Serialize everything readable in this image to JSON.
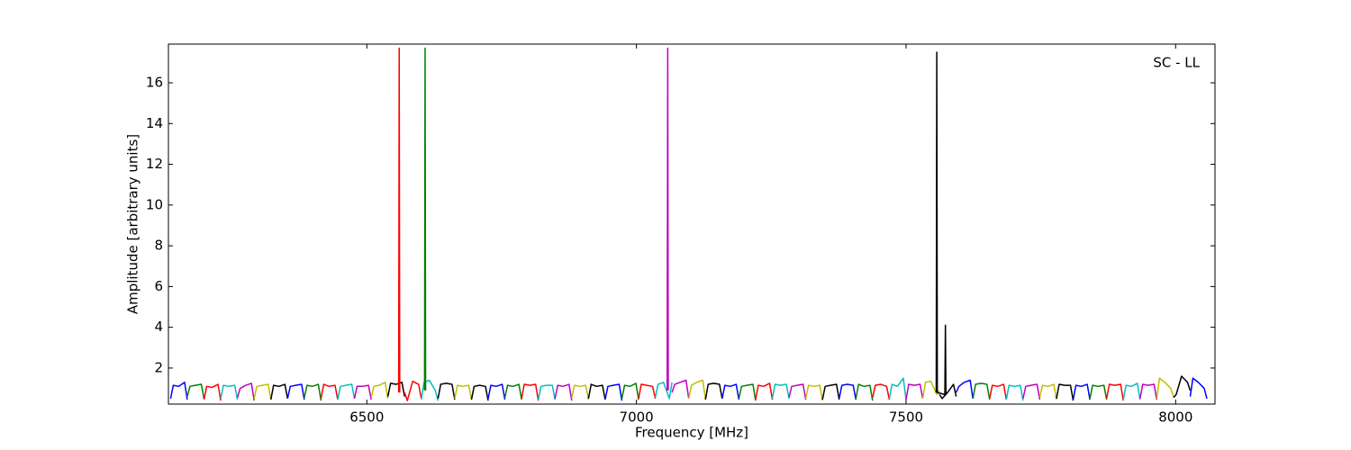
{
  "chart_data": {
    "type": "line",
    "annotation": "SC - LL",
    "xlabel": "Frequency [MHz]",
    "ylabel": "Amplitude [arbitrary units]",
    "xlim": [
      6132,
      8073
    ],
    "ylim": [
      0.23,
      17.9
    ],
    "xticks": [
      6500,
      7000,
      7500,
      8000
    ],
    "yticks": [
      2,
      4,
      6,
      8,
      10,
      12,
      14,
      16
    ],
    "series": [
      {
        "color": "#0000ff",
        "x": [
          6136,
          6141,
          6151,
          6162,
          6167
        ],
        "values": [
          0.5,
          1.15,
          1.1,
          1.3,
          0.45
        ]
      },
      {
        "color": "#008000",
        "x": [
          6167,
          6172,
          6182,
          6193,
          6198
        ],
        "values": [
          0.6,
          1.1,
          1.15,
          1.2,
          0.5
        ]
      },
      {
        "color": "#ff0000",
        "x": [
          6198,
          6203,
          6213,
          6224,
          6229
        ],
        "values": [
          0.45,
          1.1,
          1.05,
          1.2,
          0.4
        ]
      },
      {
        "color": "#00bfbf",
        "x": [
          6229,
          6234,
          6244,
          6255,
          6260
        ],
        "values": [
          0.5,
          1.15,
          1.1,
          1.15,
          0.45
        ]
      },
      {
        "color": "#bf00bf",
        "x": [
          6260,
          6265,
          6275,
          6286,
          6291
        ],
        "values": [
          0.55,
          1.0,
          1.15,
          1.25,
          0.4
        ]
      },
      {
        "color": "#bfbf00",
        "x": [
          6291,
          6296,
          6306,
          6317,
          6322
        ],
        "values": [
          0.5,
          1.1,
          1.15,
          1.2,
          0.45
        ]
      },
      {
        "color": "#000000",
        "x": [
          6322,
          6327,
          6337,
          6348,
          6353
        ],
        "values": [
          0.45,
          1.15,
          1.1,
          1.2,
          0.5
        ]
      },
      {
        "color": "#0000ff",
        "x": [
          6353,
          6358,
          6368,
          6379,
          6384
        ],
        "values": [
          0.5,
          1.1,
          1.15,
          1.2,
          0.45
        ]
      },
      {
        "color": "#008000",
        "x": [
          6384,
          6389,
          6399,
          6410,
          6415
        ],
        "values": [
          0.55,
          1.15,
          1.1,
          1.2,
          0.4
        ]
      },
      {
        "color": "#ff0000",
        "x": [
          6415,
          6420,
          6430,
          6441,
          6446
        ],
        "values": [
          0.5,
          1.2,
          1.1,
          1.15,
          0.45
        ]
      },
      {
        "color": "#00bfbf",
        "x": [
          6446,
          6451,
          6461,
          6472,
          6477
        ],
        "values": [
          0.45,
          1.1,
          1.15,
          1.2,
          0.5
        ]
      },
      {
        "color": "#bf00bf",
        "x": [
          6477,
          6482,
          6492,
          6503,
          6508
        ],
        "values": [
          0.5,
          1.1,
          1.1,
          1.15,
          0.45
        ]
      },
      {
        "color": "#bfbf00",
        "x": [
          6508,
          6513,
          6523,
          6534,
          6539
        ],
        "values": [
          0.55,
          1.1,
          1.15,
          1.3,
          0.5
        ]
      },
      {
        "color": "#000000",
        "x": [
          6539,
          6544,
          6554,
          6565,
          6570
        ],
        "values": [
          0.6,
          1.25,
          1.2,
          1.3,
          0.6
        ]
      },
      {
        "color": "#ff0000",
        "x": [
          6570,
          6575,
          6585,
          6596,
          6601
        ],
        "values": [
          0.8,
          0.4,
          1.35,
          1.2,
          0.5
        ]
      },
      {
        "color": "#00bfbf",
        "x": [
          6601,
          6606,
          6616,
          6627,
          6632
        ],
        "values": [
          0.45,
          1.3,
          1.4,
          0.9,
          0.4
        ]
      },
      {
        "color": "#000000",
        "x": [
          6632,
          6637,
          6647,
          6658,
          6663
        ],
        "values": [
          0.5,
          1.2,
          1.25,
          1.2,
          0.45
        ]
      },
      {
        "color": "#bfbf00",
        "x": [
          6663,
          6668,
          6678,
          6689,
          6694
        ],
        "values": [
          0.5,
          1.15,
          1.1,
          1.15,
          0.45
        ]
      },
      {
        "color": "#000000",
        "x": [
          6694,
          6699,
          6709,
          6720,
          6725
        ],
        "values": [
          0.45,
          1.1,
          1.15,
          1.1,
          0.4
        ]
      },
      {
        "color": "#0000ff",
        "x": [
          6725,
          6730,
          6740,
          6751,
          6756
        ],
        "values": [
          0.5,
          1.15,
          1.1,
          1.2,
          0.45
        ]
      },
      {
        "color": "#008000",
        "x": [
          6756,
          6761,
          6771,
          6782,
          6787
        ],
        "values": [
          0.55,
          1.15,
          1.1,
          1.2,
          0.45
        ]
      },
      {
        "color": "#ff0000",
        "x": [
          6787,
          6792,
          6802,
          6813,
          6818
        ],
        "values": [
          0.5,
          1.2,
          1.15,
          1.2,
          0.4
        ]
      },
      {
        "color": "#00bfbf",
        "x": [
          6818,
          6823,
          6833,
          6844,
          6849
        ],
        "values": [
          0.45,
          1.1,
          1.15,
          1.15,
          0.45
        ]
      },
      {
        "color": "#bf00bf",
        "x": [
          6849,
          6854,
          6864,
          6875,
          6880
        ],
        "values": [
          0.5,
          1.15,
          1.1,
          1.2,
          0.4
        ]
      },
      {
        "color": "#bfbf00",
        "x": [
          6880,
          6885,
          6895,
          6906,
          6911
        ],
        "values": [
          0.55,
          1.15,
          1.1,
          1.15,
          0.45
        ]
      },
      {
        "color": "#000000",
        "x": [
          6911,
          6916,
          6926,
          6937,
          6942
        ],
        "values": [
          0.5,
          1.2,
          1.1,
          1.15,
          0.45
        ]
      },
      {
        "color": "#0000ff",
        "x": [
          6942,
          6947,
          6957,
          6968,
          6973
        ],
        "values": [
          0.45,
          1.1,
          1.15,
          1.2,
          0.4
        ]
      },
      {
        "color": "#008000",
        "x": [
          6973,
          6978,
          6988,
          6999,
          7004
        ],
        "values": [
          0.5,
          1.15,
          1.1,
          1.25,
          0.45
        ]
      },
      {
        "color": "#ff0000",
        "x": [
          7004,
          7009,
          7019,
          7030,
          7035
        ],
        "values": [
          0.5,
          1.2,
          1.15,
          1.1,
          0.5
        ]
      },
      {
        "color": "#00bfbf",
        "x": [
          7035,
          7040,
          7050,
          7061,
          7066
        ],
        "values": [
          0.55,
          1.2,
          1.3,
          0.5,
          1.3
        ]
      },
      {
        "color": "#bf00bf",
        "x": [
          7066,
          7071,
          7081,
          7092,
          7097
        ],
        "values": [
          0.8,
          1.2,
          1.3,
          1.4,
          0.5
        ]
      },
      {
        "color": "#bfbf00",
        "x": [
          7097,
          7102,
          7112,
          7123,
          7128
        ],
        "values": [
          0.5,
          1.15,
          1.3,
          1.4,
          0.45
        ]
      },
      {
        "color": "#000000",
        "x": [
          7128,
          7133,
          7143,
          7154,
          7159
        ],
        "values": [
          0.45,
          1.2,
          1.25,
          1.2,
          0.5
        ]
      },
      {
        "color": "#0000ff",
        "x": [
          7159,
          7164,
          7174,
          7185,
          7190
        ],
        "values": [
          0.5,
          1.15,
          1.1,
          1.2,
          0.45
        ]
      },
      {
        "color": "#008000",
        "x": [
          7190,
          7195,
          7205,
          7216,
          7221
        ],
        "values": [
          0.5,
          1.1,
          1.15,
          1.2,
          0.4
        ]
      },
      {
        "color": "#ff0000",
        "x": [
          7221,
          7226,
          7236,
          7247,
          7252
        ],
        "values": [
          0.45,
          1.15,
          1.1,
          1.25,
          0.45
        ]
      },
      {
        "color": "#00bfbf",
        "x": [
          7252,
          7257,
          7267,
          7278,
          7283
        ],
        "values": [
          0.5,
          1.2,
          1.15,
          1.2,
          0.5
        ]
      },
      {
        "color": "#bf00bf",
        "x": [
          7283,
          7288,
          7298,
          7309,
          7314
        ],
        "values": [
          0.55,
          1.1,
          1.15,
          1.2,
          0.45
        ]
      },
      {
        "color": "#bfbf00",
        "x": [
          7314,
          7319,
          7329,
          7340,
          7345
        ],
        "values": [
          0.5,
          1.15,
          1.1,
          1.15,
          0.4
        ]
      },
      {
        "color": "#000000",
        "x": [
          7345,
          7350,
          7360,
          7371,
          7376
        ],
        "values": [
          0.45,
          1.1,
          1.15,
          1.2,
          0.45
        ]
      },
      {
        "color": "#0000ff",
        "x": [
          7376,
          7381,
          7391,
          7402,
          7407
        ],
        "values": [
          0.5,
          1.15,
          1.2,
          1.15,
          0.45
        ]
      },
      {
        "color": "#008000",
        "x": [
          7407,
          7412,
          7422,
          7433,
          7438
        ],
        "values": [
          0.5,
          1.2,
          1.1,
          1.15,
          0.4
        ]
      },
      {
        "color": "#ff0000",
        "x": [
          7438,
          7443,
          7453,
          7464,
          7469
        ],
        "values": [
          0.55,
          1.15,
          1.2,
          1.1,
          0.45
        ]
      },
      {
        "color": "#00bfbf",
        "x": [
          7469,
          7474,
          7484,
          7495,
          7500
        ],
        "values": [
          0.5,
          1.2,
          1.1,
          1.5,
          0.45
        ]
      },
      {
        "color": "#bf00bf",
        "x": [
          7500,
          7505,
          7515,
          7526,
          7531
        ],
        "values": [
          0.45,
          1.2,
          1.15,
          1.2,
          0.5
        ]
      },
      {
        "color": "#bfbf00",
        "x": [
          7531,
          7536,
          7546,
          7557,
          7562
        ],
        "values": [
          0.5,
          1.3,
          1.35,
          0.7,
          0.9
        ]
      },
      {
        "color": "#000000",
        "x": [
          7562,
          7567,
          7577,
          7588,
          7593
        ],
        "values": [
          0.7,
          0.5,
          0.8,
          1.2,
          0.6
        ]
      },
      {
        "color": "#0000ff",
        "x": [
          7593,
          7598,
          7608,
          7619,
          7624
        ],
        "values": [
          0.8,
          1.1,
          1.3,
          1.4,
          0.5
        ]
      },
      {
        "color": "#008000",
        "x": [
          7624,
          7629,
          7639,
          7650,
          7655
        ],
        "values": [
          0.5,
          1.2,
          1.25,
          1.2,
          0.45
        ]
      },
      {
        "color": "#ff0000",
        "x": [
          7655,
          7660,
          7670,
          7681,
          7686
        ],
        "values": [
          0.5,
          1.15,
          1.1,
          1.2,
          0.45
        ]
      },
      {
        "color": "#00bfbf",
        "x": [
          7686,
          7691,
          7701,
          7712,
          7717
        ],
        "values": [
          0.45,
          1.15,
          1.1,
          1.15,
          0.4
        ]
      },
      {
        "color": "#bf00bf",
        "x": [
          7717,
          7722,
          7732,
          7743,
          7748
        ],
        "values": [
          0.5,
          1.1,
          1.15,
          1.2,
          0.45
        ]
      },
      {
        "color": "#bfbf00",
        "x": [
          7748,
          7753,
          7763,
          7774,
          7779
        ],
        "values": [
          0.55,
          1.15,
          1.1,
          1.2,
          0.45
        ]
      },
      {
        "color": "#000000",
        "x": [
          7779,
          7784,
          7794,
          7805,
          7810
        ],
        "values": [
          0.5,
          1.2,
          1.15,
          1.15,
          0.4
        ]
      },
      {
        "color": "#0000ff",
        "x": [
          7810,
          7815,
          7825,
          7836,
          7841
        ],
        "values": [
          0.45,
          1.15,
          1.1,
          1.2,
          0.45
        ]
      },
      {
        "color": "#008000",
        "x": [
          7841,
          7846,
          7856,
          7867,
          7872
        ],
        "values": [
          0.5,
          1.15,
          1.1,
          1.15,
          0.45
        ]
      },
      {
        "color": "#ff0000",
        "x": [
          7872,
          7877,
          7887,
          7898,
          7903
        ],
        "values": [
          0.5,
          1.2,
          1.15,
          1.2,
          0.4
        ]
      },
      {
        "color": "#00bfbf",
        "x": [
          7903,
          7908,
          7918,
          7929,
          7934
        ],
        "values": [
          0.45,
          1.15,
          1.1,
          1.25,
          0.45
        ]
      },
      {
        "color": "#bf00bf",
        "x": [
          7934,
          7939,
          7949,
          7960,
          7965
        ],
        "values": [
          0.5,
          1.2,
          1.15,
          1.2,
          0.45
        ]
      },
      {
        "color": "#bfbf00",
        "x": [
          7965,
          7970,
          7980,
          7991,
          7996
        ],
        "values": [
          0.5,
          1.5,
          1.3,
          1.0,
          0.6
        ]
      },
      {
        "color": "#000000",
        "x": [
          7996,
          8001,
          8011,
          8022,
          8027
        ],
        "values": [
          0.55,
          0.7,
          1.6,
          1.3,
          0.9
        ]
      },
      {
        "color": "#0000ff",
        "x": [
          8027,
          8032,
          8042,
          8053,
          8058
        ],
        "values": [
          0.6,
          1.5,
          1.3,
          1.0,
          0.5
        ]
      },
      {
        "color": "#ff0000",
        "x": [
          6559,
          6560,
          6561
        ],
        "values": [
          0.8,
          17.7,
          0.8
        ]
      },
      {
        "color": "#008000",
        "x": [
          6607,
          6608,
          6609
        ],
        "values": [
          0.9,
          17.7,
          0.9
        ]
      },
      {
        "color": "#bf00bf",
        "x": [
          7057,
          7058,
          7059
        ],
        "values": [
          0.9,
          17.7,
          0.9
        ]
      },
      {
        "color": "#000000",
        "x": [
          7556,
          7557,
          7558,
          7572,
          7573,
          7574
        ],
        "values": [
          0.8,
          17.5,
          0.8,
          0.7,
          4.1,
          0.7
        ]
      }
    ]
  }
}
